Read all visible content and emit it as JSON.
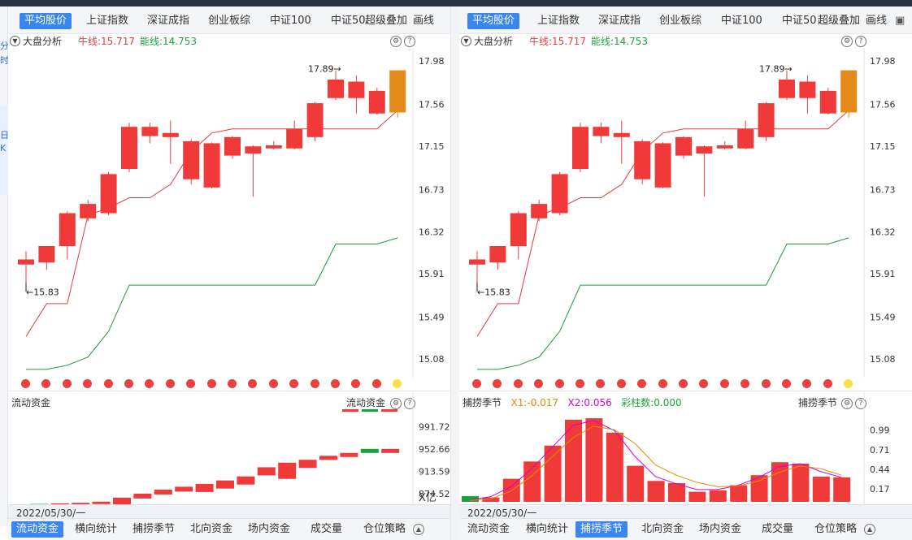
{
  "left": {
    "tabs": [
      "平均股价",
      "上证指数",
      "深证成指",
      "创业板综",
      "中证100",
      "中证50",
      "超级叠加",
      "画线"
    ],
    "active_tab": 0,
    "indicator": {
      "name": "大盘分析",
      "niu": "牛线:15.717",
      "neng": "能线:14.753"
    },
    "y_ticks": [
      "17.98",
      "17.56",
      "17.15",
      "16.73",
      "16.32",
      "15.91",
      "15.49",
      "15.08"
    ],
    "high_label": "17.89",
    "low_label": "15.83",
    "sub": {
      "title": "流动资金",
      "right_label": "流动资金",
      "y_ticks": [
        "991.72",
        "952.66",
        "913.59",
        "874.52"
      ],
      "unit": "X亿"
    },
    "date": "2022/05/30/一",
    "bottom_tabs": [
      "流动资金",
      "横向统计",
      "捕捞季节",
      "北向资金",
      "场内资金",
      "成交量",
      "仓位策略"
    ],
    "bottom_active": 0
  },
  "right": {
    "tabs": [
      "平均股价",
      "上证指数",
      "深证成指",
      "创业板综",
      "中证100",
      "中证50",
      "超级叠加",
      "画线"
    ],
    "active_tab": 0,
    "indicator": {
      "name": "大盘分析",
      "niu": "牛线:15.717",
      "neng": "能线:14.753"
    },
    "y_ticks": [
      "17.98",
      "17.56",
      "17.15",
      "16.73",
      "16.32",
      "15.91",
      "15.49",
      "15.08"
    ],
    "high_label": "17.89",
    "low_label": "15.83",
    "sub": {
      "title": "捕捞季节",
      "x1": "X1:-0.017",
      "x2": "X2:0.056",
      "caizhu": "彩柱数:0.000",
      "right_label": "捕捞季节",
      "y_ticks": [
        "0.99",
        "0.71",
        "0.44",
        "0.17"
      ]
    },
    "date": "2022/05/30/一",
    "bottom_tabs": [
      "流动资金",
      "横向统计",
      "捕捞季节",
      "北向资金",
      "场内资金",
      "成交量",
      "仓位策略"
    ],
    "bottom_active": 2
  },
  "edge_text": [
    "分",
    "时",
    "日",
    "K"
  ],
  "chart_data": [
    {
      "type": "candlestick",
      "title": "大盘分析",
      "ylim": [
        14.9,
        18.1
      ],
      "candles": [
        {
          "open": 16.0,
          "close": 16.05,
          "high": 16.13,
          "low": 15.83
        },
        {
          "open": 16.02,
          "close": 16.18,
          "high": 16.18,
          "low": 15.95
        },
        {
          "open": 16.18,
          "close": 16.5,
          "high": 16.52,
          "low": 16.05
        },
        {
          "open": 16.45,
          "close": 16.59,
          "high": 16.63,
          "low": 16.42
        },
        {
          "open": 16.5,
          "close": 16.88,
          "high": 16.9,
          "low": 16.48
        },
        {
          "open": 16.93,
          "close": 17.34,
          "high": 17.38,
          "low": 16.9
        },
        {
          "open": 17.25,
          "close": 17.34,
          "high": 17.38,
          "low": 17.18
        },
        {
          "open": 17.28,
          "close": 17.24,
          "high": 17.4,
          "low": 16.98
        },
        {
          "open": 17.2,
          "close": 16.83,
          "high": 17.22,
          "low": 16.78
        },
        {
          "open": 17.18,
          "close": 16.75,
          "high": 17.19,
          "low": 16.74
        },
        {
          "open": 17.06,
          "close": 17.24,
          "high": 17.25,
          "low": 17.03
        },
        {
          "open": 17.15,
          "close": 17.08,
          "high": 17.16,
          "low": 16.66
        },
        {
          "open": 17.13,
          "close": 17.16,
          "high": 17.2,
          "low": 17.12
        },
        {
          "open": 17.13,
          "close": 17.32,
          "high": 17.4,
          "low": 17.12
        },
        {
          "open": 17.24,
          "close": 17.57,
          "high": 17.58,
          "low": 17.2
        },
        {
          "open": 17.62,
          "close": 17.8,
          "high": 17.89,
          "low": 17.6
        },
        {
          "open": 17.62,
          "close": 17.78,
          "high": 17.84,
          "low": 17.47
        },
        {
          "open": 17.47,
          "close": 17.69,
          "high": 17.72,
          "low": 17.46
        },
        {
          "open": 17.48,
          "close": 17.89,
          "high": 17.89,
          "low": 17.43
        }
      ],
      "niu_line": [
        15.3,
        15.62,
        15.62,
        16.48,
        16.55,
        16.65,
        16.65,
        16.78,
        17.1,
        17.28,
        17.32,
        17.32,
        17.32,
        17.32,
        17.32,
        17.32,
        17.32,
        17.32,
        17.5
      ],
      "neng_line": [
        14.98,
        14.98,
        15.02,
        15.1,
        15.35,
        15.8,
        15.8,
        15.8,
        15.8,
        15.8,
        15.8,
        15.8,
        15.8,
        15.8,
        15.8,
        16.2,
        16.2,
        16.2,
        16.26
      ]
    },
    {
      "type": "bar",
      "title": "流动资金",
      "ylim": [
        855,
        1025
      ],
      "values": [
        856,
        857,
        858,
        859,
        861,
        868,
        875,
        882,
        887,
        892,
        898,
        905,
        921,
        929,
        934,
        941,
        946,
        953,
        953
      ],
      "colors": [
        "green",
        "green",
        "red",
        "red",
        "red",
        "red",
        "red",
        "red",
        "red",
        "red",
        "red",
        "red",
        "red",
        "red",
        "red",
        "red",
        "red",
        "green",
        "red"
      ]
    },
    {
      "type": "bar",
      "title": "捕捞季节",
      "ylim": [
        -0.01,
        1.32
      ],
      "values": [
        0.07,
        0.05,
        0.31,
        0.55,
        0.77,
        1.13,
        1.15,
        0.95,
        0.49,
        0.28,
        0.25,
        0.13,
        0.15,
        0.22,
        0.36,
        0.54,
        0.52,
        0.34,
        0.33
      ],
      "colors": [
        "green",
        "red",
        "red",
        "red",
        "red",
        "red",
        "red",
        "red",
        "red",
        "red",
        "red",
        "red",
        "red",
        "red",
        "red",
        "red",
        "red",
        "red",
        "red"
      ],
      "x1_line": [
        0.02,
        0.06,
        0.2,
        0.45,
        0.75,
        1.05,
        1.12,
        0.98,
        0.62,
        0.34,
        0.24,
        0.16,
        0.16,
        0.22,
        0.33,
        0.48,
        0.52,
        0.41,
        0.33
      ],
      "x2_line": [
        0.01,
        0.03,
        0.14,
        0.35,
        0.62,
        0.88,
        1.04,
        0.99,
        0.8,
        0.5,
        0.36,
        0.26,
        0.2,
        0.21,
        0.28,
        0.4,
        0.49,
        0.45,
        0.36
      ]
    }
  ]
}
